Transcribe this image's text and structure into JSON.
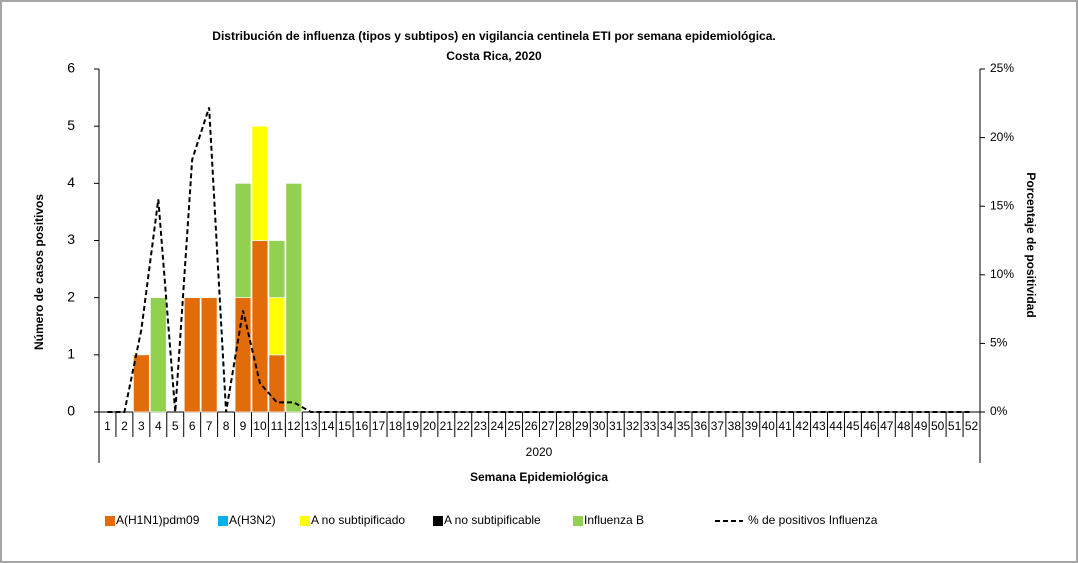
{
  "chart_data": {
    "type": "bar",
    "title": "Distribución de influenza (tipos y subtipos) en vigilancia centinela ETI por semana epidemiológica.",
    "subtitle": "Costa Rica, 2020",
    "x_label": "Semana Epidemiológica",
    "x_group": "2020",
    "y_label": "Número de casos positivos",
    "y2_label": "Porcentaje de positividad",
    "stacked": true,
    "categories": [
      "1",
      "2",
      "3",
      "4",
      "5",
      "6",
      "7",
      "8",
      "9",
      "10",
      "11",
      "12",
      "13",
      "14",
      "15",
      "16",
      "17",
      "18",
      "19",
      "20",
      "21",
      "22",
      "23",
      "24",
      "25",
      "26",
      "27",
      "28",
      "29",
      "30",
      "31",
      "32",
      "33",
      "34",
      "35",
      "36",
      "37",
      "38",
      "39",
      "40",
      "41",
      "42",
      "43",
      "44",
      "45",
      "46",
      "47",
      "48",
      "49",
      "50",
      "51",
      "52"
    ],
    "ylim": [
      0,
      6
    ],
    "yticks": [
      0,
      1,
      2,
      3,
      4,
      5,
      6
    ],
    "y2lim": [
      0,
      25
    ],
    "y2ticks": [
      {
        "value": 0,
        "label": "0%"
      },
      {
        "value": 5,
        "label": "5%"
      },
      {
        "value": 10,
        "label": "10%"
      },
      {
        "value": 15,
        "label": "15%"
      },
      {
        "value": 20,
        "label": "20%"
      },
      {
        "value": 25,
        "label": "25%"
      }
    ],
    "series": [
      {
        "name": "A(H1N1)pdm09",
        "color": "#E36C0A",
        "values": [
          0,
          0,
          1,
          0,
          0,
          2,
          2,
          0,
          2,
          3,
          1,
          0,
          0,
          0,
          0,
          0,
          0,
          0,
          0,
          0,
          0,
          0,
          0,
          0,
          0,
          0,
          0,
          0,
          0,
          0,
          0,
          0,
          0,
          0,
          0,
          0,
          0,
          0,
          0,
          0,
          0,
          0,
          0,
          0,
          0,
          0,
          0,
          0,
          0,
          0,
          0,
          0
        ]
      },
      {
        "name": "A(H3N2)",
        "color": "#00B0F0",
        "values": [
          0,
          0,
          0,
          0,
          0,
          0,
          0,
          0,
          0,
          0,
          0,
          0,
          0,
          0,
          0,
          0,
          0,
          0,
          0,
          0,
          0,
          0,
          0,
          0,
          0,
          0,
          0,
          0,
          0,
          0,
          0,
          0,
          0,
          0,
          0,
          0,
          0,
          0,
          0,
          0,
          0,
          0,
          0,
          0,
          0,
          0,
          0,
          0,
          0,
          0,
          0,
          0
        ]
      },
      {
        "name": "A no subtipificado",
        "color": "#FFFF00",
        "values": [
          0,
          0,
          0,
          0,
          0,
          0,
          0,
          0,
          0,
          2,
          1,
          0,
          0,
          0,
          0,
          0,
          0,
          0,
          0,
          0,
          0,
          0,
          0,
          0,
          0,
          0,
          0,
          0,
          0,
          0,
          0,
          0,
          0,
          0,
          0,
          0,
          0,
          0,
          0,
          0,
          0,
          0,
          0,
          0,
          0,
          0,
          0,
          0,
          0,
          0,
          0,
          0
        ]
      },
      {
        "name": "A no subtipificable",
        "color": "#000000",
        "values": [
          0,
          0,
          0,
          0,
          0,
          0,
          0,
          0,
          0,
          0,
          0,
          0,
          0,
          0,
          0,
          0,
          0,
          0,
          0,
          0,
          0,
          0,
          0,
          0,
          0,
          0,
          0,
          0,
          0,
          0,
          0,
          0,
          0,
          0,
          0,
          0,
          0,
          0,
          0,
          0,
          0,
          0,
          0,
          0,
          0,
          0,
          0,
          0,
          0,
          0,
          0,
          0
        ]
      },
      {
        "name": "Influenza B",
        "color": "#92D050",
        "values": [
          0,
          0,
          0,
          2,
          0,
          0,
          0,
          0,
          2,
          0,
          1,
          4,
          0,
          0,
          0,
          0,
          0,
          0,
          0,
          0,
          0,
          0,
          0,
          0,
          0,
          0,
          0,
          0,
          0,
          0,
          0,
          0,
          0,
          0,
          0,
          0,
          0,
          0,
          0,
          0,
          0,
          0,
          0,
          0,
          0,
          0,
          0,
          0,
          0,
          0,
          0,
          0
        ]
      },
      {
        "name": "% de positivos Influenza",
        "color": "#000000",
        "type": "line",
        "dashed": true,
        "axis": "y2",
        "values": [
          0,
          0,
          6,
          15.5,
          0,
          18.4,
          22.2,
          0,
          7.4,
          2.1,
          0.7,
          0.7,
          0,
          0,
          0,
          0,
          0,
          0,
          0,
          0,
          0,
          0,
          0,
          0,
          0,
          0,
          0,
          0,
          0,
          0,
          0,
          0,
          0,
          0,
          0,
          0,
          0,
          0,
          0,
          0,
          0,
          0,
          0,
          0,
          0,
          0,
          0,
          0,
          0,
          0,
          0,
          0
        ]
      }
    ]
  }
}
